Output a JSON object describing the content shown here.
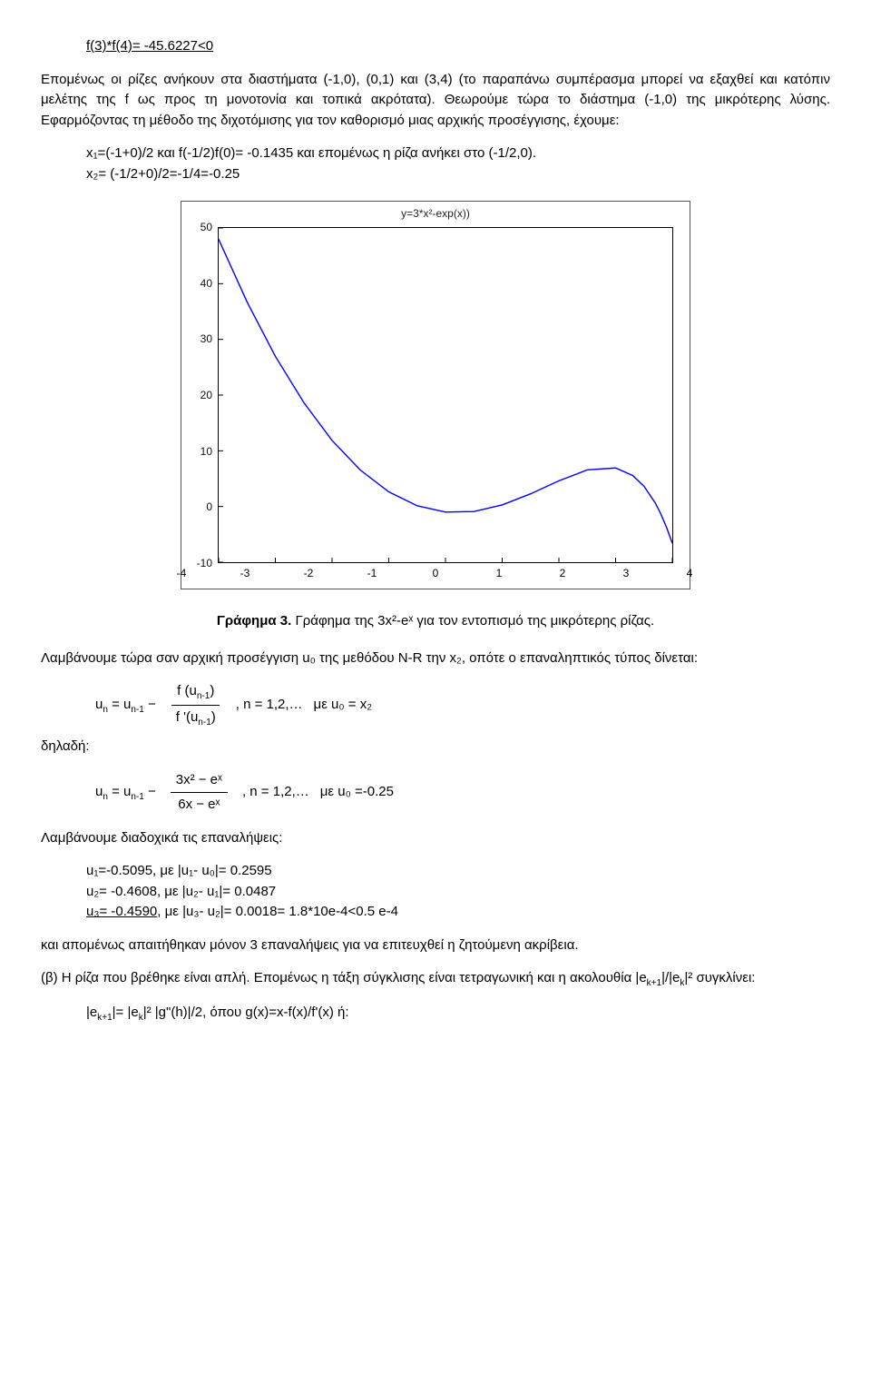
{
  "line_top": "f(3)*f(4)= -45.6227<0",
  "para1": "Επομένως οι ρίζες ανήκουν στα διαστήματα (-1,0), (0,1) και (3,4) (το παραπάνω συμπέρασμα μπορεί να εξαχθεί και κατόπιν μελέτης της f ως προς τη μονοτονία και τοπικά ακρότατα). Θεωρούμε τώρα το διάστημα (-1,0) της μικρότερης λύσης. Εφαρμόζοντας τη μέθοδο της διχοτόμισης για τον καθορισμό μιας αρχικής προσέγγισης, έχουμε:",
  "x1_line": "x₁=(-1+0)/2 και f(-1/2)f(0)= -0.1435 και επομένως η ρίζα ανήκει στο (-1/2,0).",
  "x2_line": "x₂= (-1/2+0)/2=-1/4=-0.25",
  "chart": {
    "title": "y=3*x²-exp(x))",
    "y_ticks": [
      "50",
      "40",
      "30",
      "20",
      "10",
      "0",
      "-10"
    ],
    "x_ticks": [
      "-4",
      "-3",
      "-2",
      "-1",
      "0",
      "1",
      "2",
      "3",
      "4"
    ],
    "line_color": "#0000ff",
    "border_color": "#000000",
    "bg": "#ffffff",
    "curve_points": [
      [
        -4,
        47.98
      ],
      [
        -3.5,
        36.72
      ],
      [
        -3,
        26.95
      ],
      [
        -2.5,
        18.67
      ],
      [
        -2,
        11.86
      ],
      [
        -1.5,
        6.53
      ],
      [
        -1,
        2.63
      ],
      [
        -0.5,
        0.14
      ],
      [
        0,
        -1.0
      ],
      [
        0.5,
        -0.9
      ],
      [
        1,
        0.28
      ],
      [
        1.5,
        2.27
      ],
      [
        2,
        4.61
      ],
      [
        2.5,
        6.57
      ],
      [
        3,
        6.91
      ],
      [
        3.3,
        5.56
      ],
      [
        3.5,
        3.63
      ],
      [
        3.7,
        0.62
      ],
      [
        3.8,
        -1.39
      ],
      [
        3.9,
        -3.8
      ],
      [
        4,
        -6.6
      ]
    ],
    "xlim": [
      -4,
      4
    ],
    "ylim": [
      -10,
      50
    ]
  },
  "caption_bold": "Γράφημα 3.",
  "caption_rest": " Γράφημα της 3x²-eˣ για τον εντοπισμό της μικρότερης ρίζας.",
  "para2": "Λαμβάνουμε τώρα σαν αρχική προσέγγιση u₀ της μεθόδου N-R την x₂, οπότε ο επαναληπτικός τύπος δίνεται:",
  "formula1": {
    "lhs_u": "u",
    "lhs_n": "n",
    "equals": " = ",
    "rhs_u": "u",
    "rhs_n1": "n-1",
    "minus": " − ",
    "num": "f (u",
    "num_sub": "n-1",
    "num_close": ")",
    "den": "f '(u",
    "den_sub": "n-1",
    "den_close": ")",
    "tail": ", n = 1,2,…",
    "with": "   με u₀ = x₂"
  },
  "dil": "δηλαδή:",
  "formula2": {
    "lhs_u": "u",
    "lhs_n": "n",
    "equals": " = ",
    "rhs_u": "u",
    "rhs_n1": "n-1",
    "minus": " − ",
    "num": "3x² − eˣ",
    "den": "6x − eˣ",
    "tail": ", n = 1,2,…",
    "with": " με u₀ =-0.25"
  },
  "para3": "Λαμβάνουμε διαδοχικά τις επαναλήψεις:",
  "iter1": "u₁=-0.5095,  με |u₁- u₀|= 0.2595",
  "iter2": "u₂= -0.4608, με |u₂- u₁|= 0.0487",
  "iter3_u": "u₃= -0.4590",
  "iter3_rest": ", με |u₃- u₂|= 0.0018= 1.8*10e-4<0.5 e-4",
  "para4": "και απομένως απαιτήθηκαν μόνον 3 επαναλήψεις για να επιτευχθεί η ζητούμενη ακρίβεια.",
  "para5": "(β) Η ρίζα που βρέθηκε είναι απλή. Επομένως η τάξη σύγκλισης είναι τετραγωνική και η ακολουθία |e",
  "para5_k1": "k+1",
  "para5_mid": "|/|e",
  "para5_k": "k",
  "para5_sq": "|²",
  "para5_end": " συγκλίνει:",
  "last_line_a": "|e",
  "last_k1": "k+1",
  "last_mid1": "|= |e",
  "last_k": "k",
  "last_mid2": "|² |g\"(h)|/2, όπου g(x)=x-f(x)/f'(x) ή:"
}
